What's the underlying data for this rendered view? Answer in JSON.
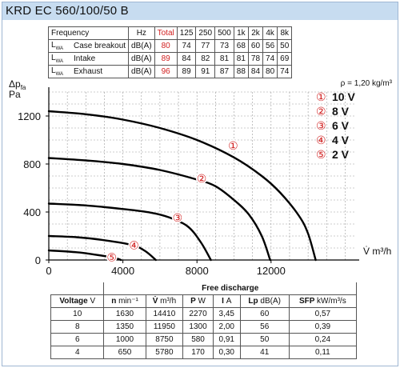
{
  "title": "KRD EC 560/100/50 B",
  "sound_table": {
    "header": [
      "Frequency",
      "Hz",
      "Total",
      "125",
      "250",
      "500",
      "1k",
      "2k",
      "4k",
      "8k"
    ],
    "rows": [
      {
        "label": "L",
        "label_sub": "WA",
        "name": "Case breakout",
        "unit": "dB(A)",
        "values": [
          "80",
          "74",
          "77",
          "73",
          "68",
          "60",
          "56",
          "50"
        ]
      },
      {
        "label": "L",
        "label_sub": "WA",
        "name": "Intake",
        "unit": "dB(A)",
        "values": [
          "89",
          "84",
          "82",
          "81",
          "81",
          "78",
          "74",
          "69"
        ]
      },
      {
        "label": "L",
        "label_sub": "WA",
        "name": "Exhaust",
        "unit": "dB(A)",
        "values": [
          "96",
          "89",
          "91",
          "87",
          "88",
          "84",
          "80",
          "74"
        ]
      }
    ],
    "total_color": "#d11f1f"
  },
  "chart_data": {
    "type": "line",
    "ylabel": "Δp",
    "ylabel_sub": "fa",
    "ylabel_unit": "Pa",
    "xlabel": "V̇ m³/h",
    "density_note": "ρ = 1,20 kg/m³",
    "xlim": [
      0,
      16500
    ],
    "ylim": [
      0,
      1400
    ],
    "x_ticks": [
      "0",
      "4000",
      "8000",
      "12000"
    ],
    "x_tick_values": [
      0,
      4000,
      8000,
      12000
    ],
    "y_ticks": [
      "0",
      "400",
      "800",
      "1200"
    ],
    "y_tick_values": [
      0,
      400,
      800,
      1200
    ],
    "grid": true,
    "legend": [
      {
        "marker": "①",
        "label": "10 V"
      },
      {
        "marker": "②",
        "label": "8 V"
      },
      {
        "marker": "③",
        "label": "6 V"
      },
      {
        "marker": "④",
        "label": "4 V"
      },
      {
        "marker": "⑤",
        "label": "2 V"
      }
    ],
    "marker_color": "#d11f1f",
    "series": [
      {
        "marker": "①",
        "marker_at": [
          9950,
          955
        ],
        "points": [
          [
            0,
            1240
          ],
          [
            2000,
            1215
          ],
          [
            4000,
            1170
          ],
          [
            6000,
            1100
          ],
          [
            8000,
            1000
          ],
          [
            10000,
            855
          ],
          [
            11500,
            700
          ],
          [
            12500,
            560
          ],
          [
            13500,
            370
          ],
          [
            14000,
            220
          ],
          [
            14410,
            0
          ]
        ]
      },
      {
        "marker": "②",
        "marker_at": [
          8250,
          680
        ],
        "points": [
          [
            0,
            850
          ],
          [
            2000,
            830
          ],
          [
            4000,
            800
          ],
          [
            6000,
            750
          ],
          [
            8000,
            670
          ],
          [
            9000,
            615
          ],
          [
            10000,
            500
          ],
          [
            10800,
            380
          ],
          [
            11500,
            200
          ],
          [
            11950,
            0
          ]
        ]
      },
      {
        "marker": "③",
        "marker_at": [
          6950,
          355
        ],
        "points": [
          [
            0,
            470
          ],
          [
            2000,
            455
          ],
          [
            4000,
            425
          ],
          [
            5500,
            395
          ],
          [
            6500,
            355
          ],
          [
            7500,
            280
          ],
          [
            8200,
            150
          ],
          [
            8750,
            0
          ]
        ]
      },
      {
        "marker": "④",
        "marker_at": [
          4600,
          125
        ],
        "points": [
          [
            0,
            200
          ],
          [
            1500,
            190
          ],
          [
            3000,
            165
          ],
          [
            4500,
            125
          ],
          [
            5200,
            75
          ],
          [
            5780,
            0
          ]
        ]
      },
      {
        "marker": "⑤",
        "marker_at": [
          3400,
          25
        ],
        "points": [
          [
            0,
            80
          ],
          [
            1500,
            65
          ],
          [
            2500,
            45
          ],
          [
            3500,
            20
          ],
          [
            3900,
            0
          ]
        ]
      }
    ]
  },
  "free_table": {
    "title": "Free discharge",
    "columns": [
      {
        "name": "Voltage",
        "unit": "V"
      },
      {
        "name": "n",
        "unit": "min⁻¹"
      },
      {
        "name": "V̇",
        "unit": "m³/h"
      },
      {
        "name": "P",
        "unit": "W"
      },
      {
        "name": "I",
        "unit": "A"
      },
      {
        "name": "Lp",
        "unit": "dB(A)"
      },
      {
        "name": "SFP",
        "unit": "kW/m³/s"
      }
    ],
    "rows": [
      [
        "10",
        "1630",
        "14410",
        "2270",
        "3,45",
        "60",
        "0,57"
      ],
      [
        "8",
        "1350",
        "11950",
        "1300",
        "2,00",
        "56",
        "0,39"
      ],
      [
        "6",
        "1000",
        "8750",
        "580",
        "0,91",
        "50",
        "0,24"
      ],
      [
        "4",
        "650",
        "5780",
        "170",
        "0,30",
        "41",
        "0,11"
      ]
    ]
  }
}
